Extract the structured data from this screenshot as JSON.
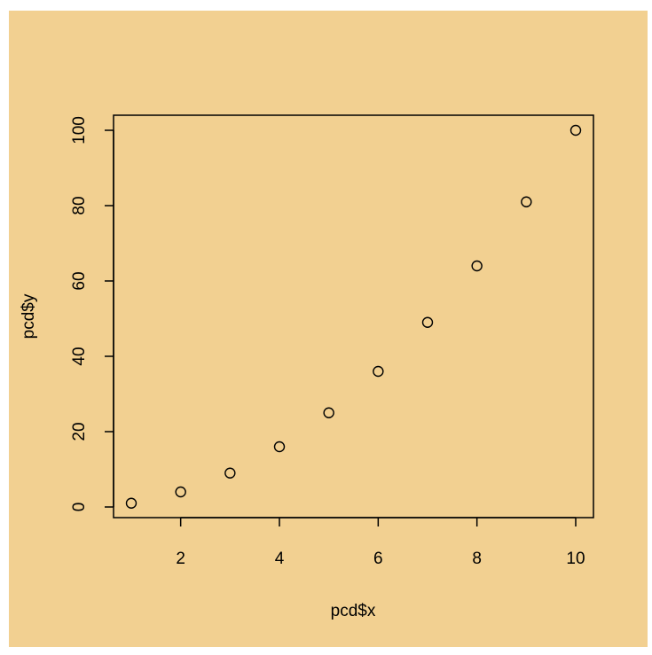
{
  "chart_data": {
    "type": "scatter",
    "title": "",
    "xlabel": "pcd$x",
    "ylabel": "pcd$y",
    "x": [
      1,
      2,
      3,
      4,
      5,
      6,
      7,
      8,
      9,
      10
    ],
    "y": [
      1,
      4,
      9,
      16,
      25,
      36,
      49,
      64,
      81,
      100
    ],
    "xlim": [
      1,
      10
    ],
    "ylim": [
      0,
      100
    ],
    "xticks": [
      2,
      4,
      6,
      8,
      10
    ],
    "yticks": [
      0,
      20,
      40,
      60,
      80,
      100
    ],
    "grid": false,
    "marker": "open-circle",
    "colors": {
      "background": "#f2d091",
      "ink": "#000000"
    }
  }
}
